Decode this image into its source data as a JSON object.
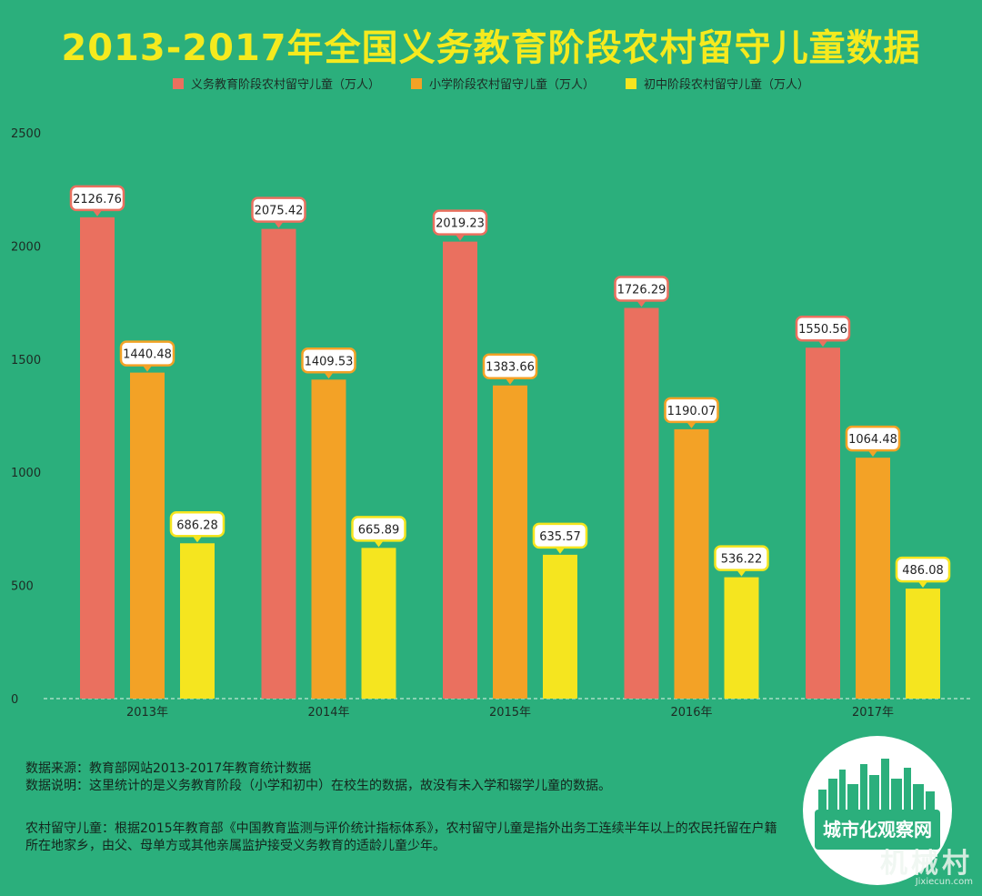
{
  "title": "2013-2017年全国义务教育阶段农村留守儿童数据",
  "colors": {
    "series": [
      "#ea705f",
      "#f3a226",
      "#f5e51f"
    ],
    "label_border": [
      "#ea705f",
      "#f3a226",
      "#f5e51f"
    ],
    "axis_text": "#1d2b24",
    "grid": "#bfe6d2"
  },
  "chart_data": {
    "type": "bar",
    "categories": [
      "2013年",
      "2014年",
      "2015年",
      "2016年",
      "2017年"
    ],
    "series": [
      {
        "name": "义务教育阶段农村留守儿童（万人）",
        "values": [
          2126.76,
          2075.42,
          2019.23,
          1726.29,
          1550.56
        ]
      },
      {
        "name": "小学阶段农村留守儿童（万人）",
        "values": [
          1440.48,
          1409.53,
          1383.66,
          1190.07,
          1064.48
        ]
      },
      {
        "name": "初中阶段农村留守儿童（万人）",
        "values": [
          686.28,
          665.89,
          635.57,
          536.22,
          486.08
        ]
      }
    ],
    "value_labels": [
      [
        "2126.76",
        "2075.42",
        "2019.23",
        "1726.29",
        "1550.56"
      ],
      [
        "1440.48",
        "1409.53",
        "1383.66",
        "1190.07",
        "1064.48"
      ],
      [
        "686.28",
        "665.89",
        "635.57",
        "536.22",
        "486.08"
      ]
    ],
    "y_ticks": [
      "0",
      "500",
      "1000",
      "1500",
      "2000",
      "2500"
    ],
    "ylim": [
      0,
      2500
    ],
    "legend_position": "top-center",
    "grid": false
  },
  "notes": {
    "source": "数据来源：教育部网站2013-2017年教育统计数据",
    "explanation": "数据说明：这里统计的是义务教育阶段（小学和初中）在校生的数据，故没有未入学和辍学儿童的数据。",
    "definition": "农村留守儿童：根据2015年教育部《中国教育监测与评价统计指标体系》，农村留守儿童是指外出务工连续半年以上的农民托留在户籍所在地家乡，由父、母单方或其他亲属监护接受义务教育的适龄儿童少年。"
  },
  "logo": {
    "text": "城市化观察网"
  },
  "watermark": {
    "text": "机械村",
    "url_text": "Jixiecun.com"
  }
}
